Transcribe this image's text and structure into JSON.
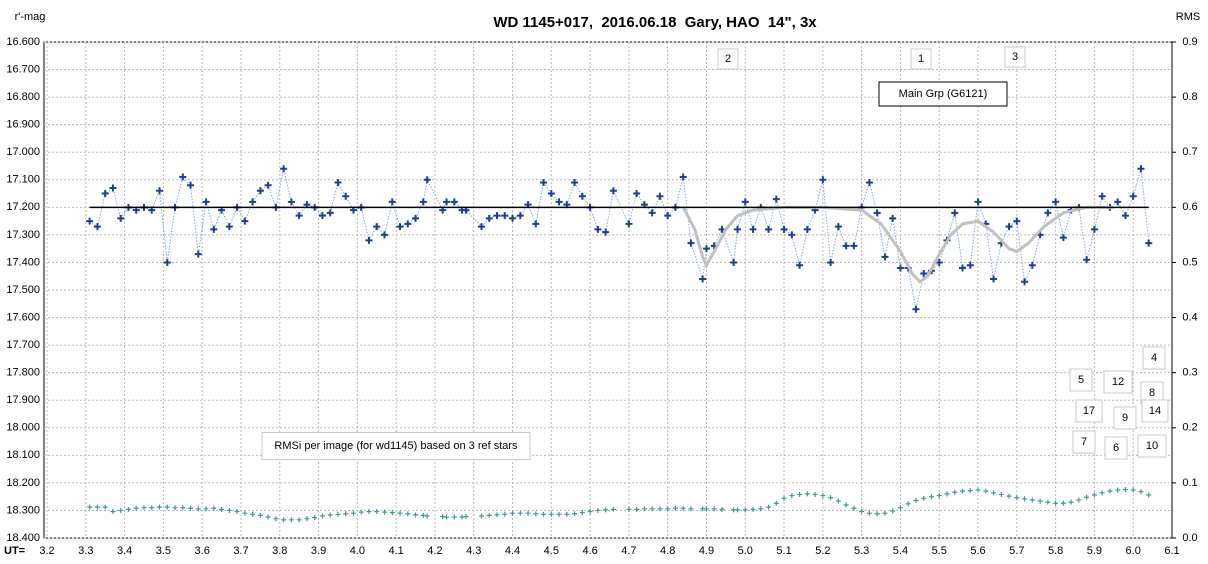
{
  "chart_data": {
    "type": "scatter",
    "title": "WD 1145+017,  2016.06.18  Gary, HAO  14\", 3x",
    "ylabel": "r'-mag",
    "y2label": "RMS",
    "xlabel": "UT=",
    "xlim": [
      3.2,
      6.1
    ],
    "xticks": [
      3.2,
      3.3,
      3.4,
      3.5,
      3.6,
      3.7,
      3.8,
      3.9,
      {
        "value": 4,
        "label": "4.0"
      },
      4.1,
      4.2,
      4.3,
      4.4,
      4.5,
      4.6,
      4.7,
      4.8,
      4.9,
      {
        "value": 5,
        "label": "5.0"
      },
      5.1,
      5.2,
      5.3,
      5.4,
      5.5,
      5.6,
      5.7,
      5.8,
      5.9,
      {
        "value": 6,
        "label": "6.0"
      },
      6.1
    ],
    "ylim": [
      16.6,
      18.4
    ],
    "y_reversed": true,
    "yticks": [
      {
        "value": 16.6,
        "label": "16.600"
      },
      {
        "value": 16.7,
        "label": "16.700"
      },
      {
        "value": 16.8,
        "label": "16.800"
      },
      {
        "value": 16.9,
        "label": "16.900"
      },
      {
        "value": 17.0,
        "label": "17.000"
      },
      {
        "value": 17.1,
        "label": "17.100"
      },
      {
        "value": 17.2,
        "label": "17.200"
      },
      {
        "value": 17.3,
        "label": "17.300"
      },
      {
        "value": 17.4,
        "label": "17.400"
      },
      {
        "value": 17.5,
        "label": "17.500"
      },
      {
        "value": 17.6,
        "label": "17.600"
      },
      {
        "value": 17.7,
        "label": "17.700"
      },
      {
        "value": 17.8,
        "label": "17.800"
      },
      {
        "value": 17.9,
        "label": "17.900"
      },
      {
        "value": 18.0,
        "label": "18.000"
      },
      {
        "value": 18.1,
        "label": "18.100"
      },
      {
        "value": 18.2,
        "label": "18.200"
      },
      {
        "value": 18.3,
        "label": "18.300"
      },
      {
        "value": 18.4,
        "label": "18.400"
      }
    ],
    "y2lim": [
      0,
      0.9
    ],
    "y2ticks": [
      0.9,
      0.8,
      0.7,
      0.6,
      0.5,
      0.4,
      0.3,
      0.2,
      0.1,
      {
        "value": 0,
        "label": "0.0"
      }
    ],
    "grid": true,
    "x": [
      3.31,
      3.33,
      3.35,
      3.37,
      3.39,
      3.41,
      3.43,
      3.45,
      3.47,
      3.49,
      3.51,
      3.53,
      3.55,
      3.57,
      3.59,
      3.61,
      3.63,
      3.65,
      3.67,
      3.69,
      3.71,
      3.73,
      3.75,
      3.77,
      3.79,
      3.81,
      3.83,
      3.85,
      3.87,
      3.89,
      3.91,
      3.93,
      3.95,
      3.97,
      3.99,
      4.01,
      4.03,
      4.05,
      4.07,
      4.09,
      4.11,
      4.13,
      4.15,
      4.17,
      4.18,
      4.22,
      4.23,
      4.25,
      4.27,
      4.28,
      4.32,
      4.34,
      4.36,
      4.38,
      4.4,
      4.42,
      4.44,
      4.46,
      4.48,
      4.5,
      4.52,
      4.54,
      4.56,
      4.58,
      4.6,
      4.62,
      4.64,
      4.66,
      4.7,
      4.72,
      4.74,
      4.76,
      4.78,
      4.8,
      4.82,
      4.84,
      4.86,
      4.89,
      4.9,
      4.92,
      4.94,
      4.97,
      4.98,
      5.0,
      5.02,
      5.04,
      5.06,
      5.08,
      5.1,
      5.12,
      5.14,
      5.16,
      5.18,
      5.2,
      5.22,
      5.24,
      5.26,
      5.28,
      5.3,
      5.32,
      5.34,
      5.36,
      5.38,
      5.4,
      5.42,
      5.44,
      5.46,
      5.48,
      5.5,
      5.52,
      5.54,
      5.56,
      5.58,
      5.6,
      5.62,
      5.64,
      5.66,
      5.68,
      5.7,
      5.72,
      5.74,
      5.76,
      5.78,
      5.8,
      5.82,
      5.84,
      5.86,
      5.88,
      5.9,
      5.92,
      5.94,
      5.96,
      5.98,
      6.0,
      6.02,
      6.04
    ],
    "series": [
      {
        "color": "#1f3f8f",
        "line_color": "#7fa8d8",
        "line": "dotted",
        "marker": "plus",
        "values": [
          17.25,
          17.27,
          17.15,
          17.13,
          17.24,
          17.2,
          17.21,
          17.2,
          17.21,
          17.14,
          17.4,
          17.2,
          17.09,
          17.12,
          17.37,
          17.18,
          17.28,
          17.21,
          17.27,
          17.2,
          17.25,
          17.18,
          17.14,
          17.12,
          17.2,
          17.06,
          17.18,
          17.23,
          17.19,
          17.2,
          17.23,
          17.22,
          17.11,
          17.16,
          17.21,
          17.2,
          17.32,
          17.27,
          17.3,
          17.18,
          17.27,
          17.26,
          17.24,
          17.18,
          17.1,
          17.21,
          17.18,
          17.18,
          17.21,
          17.21,
          17.27,
          17.24,
          17.23,
          17.23,
          17.24,
          17.23,
          17.19,
          17.26,
          17.11,
          17.15,
          17.18,
          17.19,
          17.11,
          17.16,
          17.2,
          17.28,
          17.29,
          17.14,
          17.26,
          17.15,
          17.19,
          17.22,
          17.16,
          17.23,
          17.2,
          17.09,
          17.33,
          17.46,
          17.35,
          17.34,
          17.28,
          17.4,
          17.28,
          17.18,
          17.28,
          17.2,
          17.28,
          17.17,
          17.28,
          17.3,
          17.41,
          17.28,
          17.21,
          17.1,
          17.4,
          17.27,
          17.34,
          17.34,
          17.2,
          17.11,
          17.22,
          17.38,
          17.24,
          17.42,
          17.42,
          17.57,
          17.44,
          17.43,
          17.4,
          17.32,
          17.22,
          17.42,
          17.41,
          17.18,
          17.26,
          17.46,
          17.33,
          17.27,
          17.25,
          17.47,
          17.41,
          17.3,
          17.22,
          17.18,
          17.31,
          17.21,
          17.2,
          17.39,
          17.28,
          17.16,
          17.2,
          17.18,
          17.23,
          17.16,
          17.06,
          17.33
        ]
      },
      {
        "color": "#c0c0c0",
        "line": "solid",
        "width": 3,
        "marker": "none",
        "x": [
          4.84,
          4.87,
          4.89,
          4.9,
          4.92,
          4.95,
          4.98,
          5.02,
          5.1,
          5.2,
          5.3,
          5.35,
          5.4,
          5.43,
          5.45,
          5.47,
          5.5,
          5.53,
          5.56,
          5.6,
          5.64,
          5.68,
          5.7,
          5.73,
          5.77,
          5.82,
          5.88,
          5.95
        ],
        "values": [
          17.2,
          17.28,
          17.38,
          17.41,
          17.36,
          17.28,
          17.23,
          17.21,
          17.2,
          17.2,
          17.21,
          17.26,
          17.36,
          17.44,
          17.47,
          17.45,
          17.37,
          17.3,
          17.26,
          17.25,
          17.29,
          17.35,
          17.36,
          17.33,
          17.27,
          17.22,
          17.2,
          17.2
        ]
      },
      {
        "color": "#000000",
        "line": "solid",
        "width": 1.5,
        "marker": "none",
        "x": [
          3.31,
          6.04
        ],
        "values": [
          17.2,
          17.2
        ]
      },
      {
        "color": "#3a9a9a",
        "line": "none",
        "marker": "plus",
        "axis": "y2",
        "values": [
          0.056,
          0.056,
          0.056,
          0.048,
          0.05,
          0.052,
          0.054,
          0.055,
          0.055,
          0.056,
          0.056,
          0.055,
          0.055,
          0.054,
          0.053,
          0.053,
          0.054,
          0.052,
          0.05,
          0.048,
          0.045,
          0.043,
          0.041,
          0.038,
          0.035,
          0.033,
          0.033,
          0.033,
          0.035,
          0.037,
          0.04,
          0.042,
          0.043,
          0.044,
          0.045,
          0.047,
          0.048,
          0.048,
          0.047,
          0.046,
          0.045,
          0.044,
          0.042,
          0.041,
          0.04,
          0.039,
          0.038,
          0.038,
          0.038,
          0.039,
          0.04,
          0.041,
          0.042,
          0.043,
          0.045,
          0.045,
          0.045,
          0.044,
          0.043,
          0.043,
          0.043,
          0.043,
          0.044,
          0.046,
          0.048,
          0.05,
          0.051,
          0.052,
          0.052,
          0.052,
          0.053,
          0.053,
          0.053,
          0.053,
          0.054,
          0.054,
          0.053,
          0.053,
          0.053,
          0.053,
          0.052,
          0.051,
          0.051,
          0.051,
          0.052,
          0.053,
          0.056,
          0.063,
          0.072,
          0.077,
          0.079,
          0.08,
          0.079,
          0.077,
          0.073,
          0.067,
          0.06,
          0.054,
          0.048,
          0.045,
          0.044,
          0.045,
          0.049,
          0.055,
          0.062,
          0.068,
          0.072,
          0.075,
          0.077,
          0.08,
          0.083,
          0.085,
          0.086,
          0.087,
          0.085,
          0.082,
          0.079,
          0.076,
          0.073,
          0.071,
          0.069,
          0.067,
          0.065,
          0.063,
          0.063,
          0.065,
          0.069,
          0.074,
          0.078,
          0.082,
          0.085,
          0.087,
          0.088,
          0.087,
          0.084,
          0.078
        ]
      }
    ],
    "annotations": [
      "2",
      "1",
      "3",
      "Main Grp (G6121)",
      "4",
      "5",
      "12",
      "8",
      "17",
      "9",
      "14",
      "7",
      "6",
      "10",
      "RMSi per image (for wd1145) based on 3 ref stars"
    ]
  }
}
